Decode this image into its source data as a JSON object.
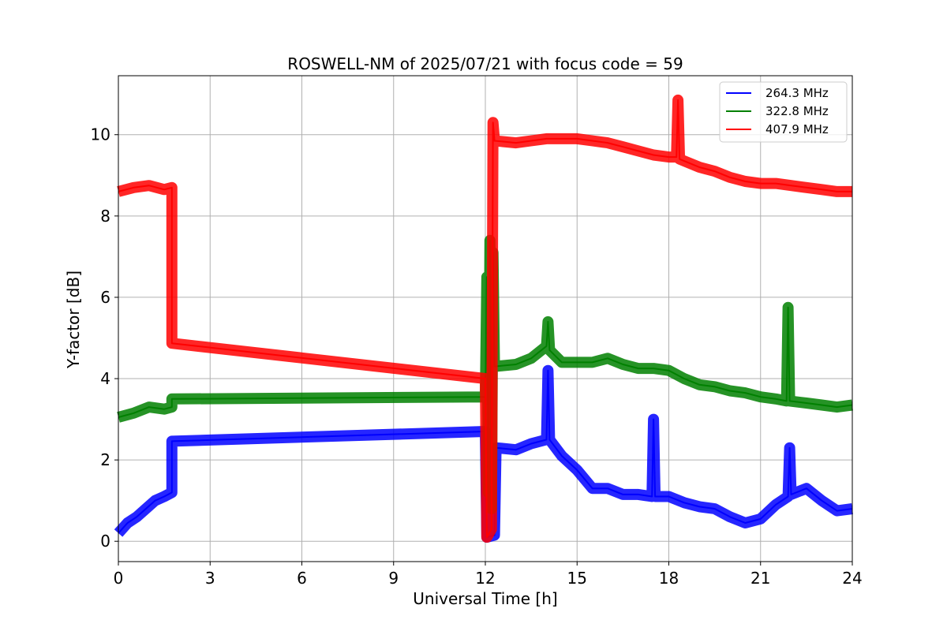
{
  "chart_data": {
    "type": "line",
    "title": "ROSWELL-NM of 2025/07/21 with focus code = 59",
    "xlabel": "Universal Time [h]",
    "ylabel": "Y-factor [dB]",
    "xlim": [
      0,
      24
    ],
    "ylim": [
      -0.5,
      11.45
    ],
    "xticks": [
      0,
      3,
      6,
      9,
      12,
      15,
      18,
      21,
      24
    ],
    "yticks": [
      0,
      2,
      4,
      6,
      8,
      10
    ],
    "grid": true,
    "legend_position": "top-right",
    "series": [
      {
        "name": "264.3 MHz",
        "color": "#0000ff",
        "points": [
          [
            0,
            0.2
          ],
          [
            0.3,
            0.45
          ],
          [
            0.6,
            0.6
          ],
          [
            0.9,
            0.8
          ],
          [
            1.2,
            1.0
          ],
          [
            1.5,
            1.1
          ],
          [
            1.75,
            1.2
          ],
          [
            1.75,
            2.46
          ],
          [
            12.0,
            2.7
          ],
          [
            12.05,
            0.1
          ],
          [
            12.3,
            0.15
          ],
          [
            12.35,
            2.3
          ],
          [
            13.0,
            2.25
          ],
          [
            13.5,
            2.4
          ],
          [
            14.0,
            2.5
          ],
          [
            14.05,
            4.2
          ],
          [
            14.1,
            2.5
          ],
          [
            14.5,
            2.1
          ],
          [
            15.0,
            1.75
          ],
          [
            15.5,
            1.3
          ],
          [
            16.0,
            1.3
          ],
          [
            16.5,
            1.15
          ],
          [
            17.0,
            1.15
          ],
          [
            17.45,
            1.1
          ],
          [
            17.5,
            3.0
          ],
          [
            17.55,
            1.1
          ],
          [
            18.0,
            1.1
          ],
          [
            18.5,
            0.95
          ],
          [
            19.0,
            0.85
          ],
          [
            19.5,
            0.8
          ],
          [
            20.0,
            0.6
          ],
          [
            20.5,
            0.45
          ],
          [
            21.0,
            0.55
          ],
          [
            21.5,
            0.9
          ],
          [
            21.9,
            1.1
          ],
          [
            21.95,
            2.3
          ],
          [
            22.0,
            1.15
          ],
          [
            22.5,
            1.3
          ],
          [
            23.0,
            1.0
          ],
          [
            23.5,
            0.75
          ],
          [
            24.0,
            0.8
          ]
        ]
      },
      {
        "name": "322.8 MHz",
        "color": "#008000",
        "points": [
          [
            0,
            3.05
          ],
          [
            0.5,
            3.15
          ],
          [
            1.0,
            3.3
          ],
          [
            1.5,
            3.25
          ],
          [
            1.75,
            3.3
          ],
          [
            1.75,
            3.5
          ],
          [
            12.0,
            3.55
          ],
          [
            12.05,
            6.5
          ],
          [
            12.1,
            1.2
          ],
          [
            12.15,
            7.4
          ],
          [
            12.2,
            0.8
          ],
          [
            12.25,
            7.1
          ],
          [
            12.3,
            4.3
          ],
          [
            13.0,
            4.35
          ],
          [
            13.5,
            4.5
          ],
          [
            14.0,
            4.8
          ],
          [
            14.05,
            5.4
          ],
          [
            14.1,
            4.7
          ],
          [
            14.5,
            4.4
          ],
          [
            15.0,
            4.4
          ],
          [
            15.5,
            4.4
          ],
          [
            16.0,
            4.5
          ],
          [
            16.5,
            4.35
          ],
          [
            17.0,
            4.25
          ],
          [
            17.5,
            4.25
          ],
          [
            18.0,
            4.2
          ],
          [
            18.5,
            4.0
          ],
          [
            19.0,
            3.85
          ],
          [
            19.5,
            3.8
          ],
          [
            20.0,
            3.7
          ],
          [
            20.5,
            3.65
          ],
          [
            21.0,
            3.55
          ],
          [
            21.5,
            3.5
          ],
          [
            21.85,
            3.45
          ],
          [
            21.9,
            5.75
          ],
          [
            21.95,
            3.45
          ],
          [
            22.5,
            3.4
          ],
          [
            23.0,
            3.35
          ],
          [
            23.5,
            3.3
          ],
          [
            24.0,
            3.35
          ]
        ]
      },
      {
        "name": "407.9 MHz",
        "color": "#ff0000",
        "points": [
          [
            0,
            8.6
          ],
          [
            0.5,
            8.7
          ],
          [
            1.0,
            8.75
          ],
          [
            1.5,
            8.65
          ],
          [
            1.75,
            8.7
          ],
          [
            1.75,
            4.87
          ],
          [
            12.0,
            4.0
          ],
          [
            12.05,
            0.1
          ],
          [
            12.2,
            0.3
          ],
          [
            12.25,
            10.3
          ],
          [
            12.3,
            9.85
          ],
          [
            13.0,
            9.8
          ],
          [
            13.5,
            9.85
          ],
          [
            14.0,
            9.9
          ],
          [
            14.5,
            9.9
          ],
          [
            15.0,
            9.9
          ],
          [
            15.5,
            9.85
          ],
          [
            16.0,
            9.8
          ],
          [
            16.5,
            9.7
          ],
          [
            17.0,
            9.6
          ],
          [
            17.5,
            9.5
          ],
          [
            18.0,
            9.45
          ],
          [
            18.25,
            9.45
          ],
          [
            18.3,
            10.85
          ],
          [
            18.35,
            9.4
          ],
          [
            19.0,
            9.2
          ],
          [
            19.5,
            9.1
          ],
          [
            20.0,
            8.95
          ],
          [
            20.5,
            8.85
          ],
          [
            21.0,
            8.8
          ],
          [
            21.5,
            8.8
          ],
          [
            22.0,
            8.75
          ],
          [
            22.5,
            8.7
          ],
          [
            23.0,
            8.65
          ],
          [
            23.5,
            8.6
          ],
          [
            24.0,
            8.6
          ]
        ]
      }
    ]
  }
}
